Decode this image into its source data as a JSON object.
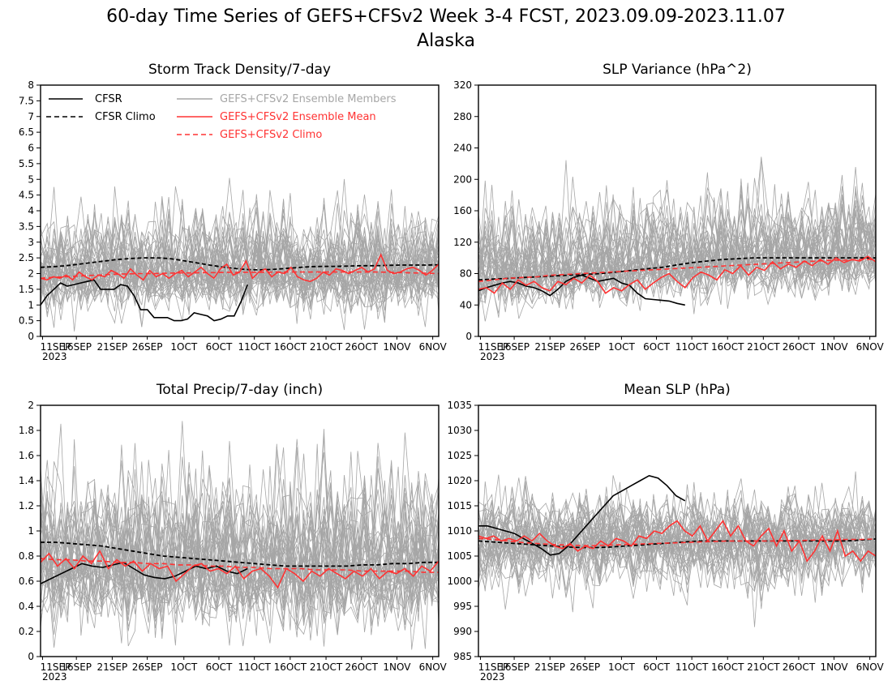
{
  "figure": {
    "title": "60-day Time Series of GEFS+CFSv2 Week 3-4 FCST, 2023.09.09-2023.11.07",
    "subtitle": "Alaska"
  },
  "legend": {
    "cfsr": "CFSR",
    "cfsr_climo": "CFSR Climo",
    "members": "GEFS+CFSv2 Ensemble Members",
    "ens_mean": "GEFS+CFSv2 Ensemble Mean",
    "ens_climo": "GEFS+CFSv2 Climo"
  },
  "colors": {
    "cfsr": "#000000",
    "members": "#a6a6a6",
    "ens_mean": "#ff3333",
    "climo_red": "#ff3333"
  },
  "chart_data": [
    {
      "type": "line",
      "title": "Storm Track Density/7-day",
      "x_ticks": [
        "11SEP",
        "16SEP",
        "21SEP",
        "26SEP",
        "1OCT",
        "6OCT",
        "11OCT",
        "16OCT",
        "21OCT",
        "26OCT",
        "1NOV",
        "6NOV"
      ],
      "x_year_label": "2023",
      "ylim": [
        0,
        8
      ],
      "y_ticks": [
        "0",
        "0.5",
        "1",
        "1.5",
        "2",
        "2.5",
        "3",
        "3.5",
        "4",
        "4.5",
        "5",
        "5.5",
        "6",
        "6.5",
        "7",
        "7.5",
        "8"
      ],
      "has_legend": true,
      "series": [
        {
          "name": "CFSR",
          "style": "black-solid",
          "values": [
            1.0,
            1.3,
            1.5,
            1.7,
            1.6,
            1.65,
            1.7,
            1.75,
            1.8,
            1.5,
            1.5,
            1.5,
            1.65,
            1.6,
            1.3,
            0.85,
            0.85,
            0.6,
            0.6,
            0.6,
            0.5,
            0.5,
            0.55,
            0.75,
            0.7,
            0.65,
            0.5,
            0.55,
            0.65,
            0.65,
            1.1,
            1.65
          ]
        },
        {
          "name": "CFSR Climo",
          "style": "black-dash",
          "values": [
            2.2,
            2.22,
            2.25,
            2.3,
            2.35,
            2.4,
            2.45,
            2.48,
            2.5,
            2.5,
            2.48,
            2.42,
            2.35,
            2.28,
            2.22,
            2.17,
            2.13,
            2.12,
            2.13,
            2.16,
            2.19,
            2.22,
            2.23,
            2.23,
            2.24,
            2.25,
            2.25,
            2.26,
            2.27,
            2.27,
            2.27,
            2.28
          ]
        },
        {
          "name": "GEFS+CFSv2 Ensemble Mean",
          "style": "red-solid",
          "values": [
            1.85,
            1.8,
            1.9,
            1.85,
            1.95,
            1.8,
            2.05,
            1.9,
            1.8,
            1.95,
            1.9,
            2.1,
            2.0,
            1.85,
            2.15,
            1.95,
            1.8,
            2.1,
            1.9,
            2.0,
            1.85,
            2.0,
            2.1,
            1.9,
            2.05,
            2.2,
            2.0,
            1.85,
            2.15,
            2.3,
            1.95,
            2.05,
            2.4,
            1.85,
            2.05,
            2.15,
            1.9,
            2.05,
            2.0,
            2.2,
            1.9,
            1.8,
            1.75,
            1.85,
            2.05,
            1.95,
            2.15,
            2.1,
            2.0,
            2.1,
            2.2,
            2.05,
            2.15,
            2.6,
            2.1,
            2.0,
            2.05,
            2.15,
            2.2,
            2.1,
            1.95,
            2.1,
            2.3
          ]
        },
        {
          "name": "GEFS+CFSv2 Climo",
          "style": "red-dash",
          "values": [
            1.85,
            1.88,
            1.9,
            1.92,
            1.94,
            1.96,
            1.98,
            1.99,
            2.0,
            2.0,
            2.01,
            2.02,
            2.02,
            2.03,
            2.03,
            2.04,
            2.04,
            2.04,
            2.04,
            2.05,
            2.05,
            2.05,
            2.05,
            2.05,
            2.05,
            2.05,
            2.05,
            2.05,
            2.04,
            2.03,
            2.02,
            2.01,
            2.0
          ]
        }
      ]
    },
    {
      "type": "line",
      "title": "SLP Variance (hPa^2)",
      "x_ticks": [
        "11SEP",
        "16SEP",
        "21SEP",
        "26SEP",
        "1OCT",
        "6OCT",
        "11OCT",
        "16OCT",
        "21OCT",
        "26OCT",
        "1NOV",
        "6NOV"
      ],
      "x_year_label": "2023",
      "ylim": [
        0,
        320
      ],
      "y_ticks": [
        "0",
        "40",
        "80",
        "120",
        "160",
        "200",
        "240",
        "280",
        "320"
      ],
      "has_legend": false,
      "series": [
        {
          "name": "CFSR",
          "style": "black-solid",
          "values": [
            58,
            62,
            65,
            68,
            70,
            68,
            64,
            62,
            58,
            52,
            60,
            70,
            75,
            78,
            74,
            70,
            72,
            74,
            68,
            65,
            55,
            48,
            47,
            46,
            45,
            42,
            40
          ]
        },
        {
          "name": "CFSR Climo",
          "style": "black-dash",
          "values": [
            72,
            73,
            74,
            75,
            76,
            77,
            78,
            79,
            80,
            82,
            84,
            86,
            88,
            91,
            94,
            96,
            98,
            99,
            100,
            100,
            100,
            100,
            100,
            100,
            100,
            100,
            100
          ]
        },
        {
          "name": "GEFS+CFSv2 Ensemble Mean",
          "style": "red-solid",
          "values": [
            60,
            62,
            55,
            68,
            60,
            72,
            65,
            70,
            62,
            58,
            70,
            66,
            74,
            68,
            78,
            70,
            55,
            62,
            58,
            66,
            72,
            60,
            68,
            75,
            80,
            70,
            62,
            75,
            82,
            78,
            72,
            85,
            80,
            90,
            78,
            88,
            84,
            95,
            86,
            92,
            88,
            96,
            90,
            98,
            92,
            100,
            94,
            98,
            96,
            102,
            95
          ]
        },
        {
          "name": "GEFS+CFSv2 Climo",
          "style": "red-dash",
          "values": [
            70,
            72,
            74,
            75,
            76,
            78,
            79,
            80,
            81,
            82,
            83,
            84,
            85,
            86,
            87,
            88,
            89,
            90,
            91,
            92,
            93,
            94,
            95,
            96,
            97,
            97,
            98,
            98
          ]
        }
      ]
    },
    {
      "type": "line",
      "title": "Total Precip/7-day (inch)",
      "x_ticks": [
        "11SEP",
        "16SEP",
        "21SEP",
        "26SEP",
        "1OCT",
        "6OCT",
        "11OCT",
        "16OCT",
        "21OCT",
        "26OCT",
        "1NOV",
        "6NOV"
      ],
      "x_year_label": "2023",
      "ylim": [
        0,
        2
      ],
      "y_ticks": [
        "0",
        "0.2",
        "0.4",
        "0.6",
        "0.8",
        "1",
        "1.2",
        "1.4",
        "1.6",
        "1.8",
        "2"
      ],
      "has_legend": false,
      "series": [
        {
          "name": "CFSR",
          "style": "black-solid",
          "values": [
            0.58,
            0.62,
            0.66,
            0.7,
            0.74,
            0.72,
            0.71,
            0.73,
            0.75,
            0.7,
            0.65,
            0.63,
            0.62,
            0.64,
            0.68,
            0.72,
            0.7,
            0.72,
            0.68,
            0.66,
            0.7
          ]
        },
        {
          "name": "CFSR Climo",
          "style": "black-dash",
          "values": [
            0.91,
            0.91,
            0.9,
            0.89,
            0.88,
            0.86,
            0.84,
            0.82,
            0.8,
            0.79,
            0.78,
            0.77,
            0.76,
            0.75,
            0.74,
            0.73,
            0.72,
            0.72,
            0.72,
            0.72,
            0.72,
            0.73,
            0.73,
            0.74,
            0.74,
            0.75,
            0.75
          ]
        },
        {
          "name": "GEFS+CFSv2 Ensemble Mean",
          "style": "red-solid",
          "values": [
            0.75,
            0.82,
            0.72,
            0.78,
            0.7,
            0.8,
            0.74,
            0.84,
            0.7,
            0.77,
            0.72,
            0.76,
            0.68,
            0.74,
            0.7,
            0.72,
            0.6,
            0.66,
            0.72,
            0.74,
            0.68,
            0.7,
            0.66,
            0.72,
            0.62,
            0.68,
            0.7,
            0.64,
            0.55,
            0.7,
            0.66,
            0.6,
            0.68,
            0.64,
            0.7,
            0.66,
            0.62,
            0.68,
            0.64,
            0.7,
            0.62,
            0.68,
            0.66,
            0.7,
            0.64,
            0.72,
            0.68,
            0.76
          ]
        },
        {
          "name": "GEFS+CFSv2 Climo",
          "style": "red-dash",
          "values": [
            0.78,
            0.77,
            0.77,
            0.76,
            0.76,
            0.75,
            0.75,
            0.74,
            0.74,
            0.73,
            0.73,
            0.72,
            0.72,
            0.71,
            0.71,
            0.7,
            0.7,
            0.7,
            0.69,
            0.69,
            0.69,
            0.68,
            0.68,
            0.68,
            0.68,
            0.67,
            0.67
          ]
        }
      ]
    },
    {
      "type": "line",
      "title": "Mean SLP (hPa)",
      "x_ticks": [
        "11SEP",
        "16SEP",
        "21SEP",
        "26SEP",
        "1OCT",
        "6OCT",
        "11OCT",
        "16OCT",
        "21OCT",
        "26OCT",
        "1NOV",
        "6NOV"
      ],
      "x_year_label": "2023",
      "ylim": [
        985,
        1035
      ],
      "y_ticks": [
        "985",
        "990",
        "995",
        "1000",
        "1005",
        "1010",
        "1015",
        "1020",
        "1025",
        "1030",
        "1035"
      ],
      "has_legend": false,
      "series": [
        {
          "name": "CFSR",
          "style": "black-solid",
          "values": [
            1011,
            1011,
            1010.5,
            1010,
            1009.5,
            1008.5,
            1007.5,
            1006.5,
            1005.2,
            1005.5,
            1007,
            1009,
            1011,
            1013,
            1015,
            1017,
            1018,
            1019,
            1020,
            1021,
            1020.5,
            1019,
            1017,
            1016
          ]
        },
        {
          "name": "CFSR Climo",
          "style": "black-dash",
          "values": [
            1008,
            1007.8,
            1007.6,
            1007.4,
            1007.2,
            1007,
            1006.8,
            1006.7,
            1006.7,
            1006.8,
            1007,
            1007.2,
            1007.4,
            1007.6,
            1007.8,
            1008,
            1008,
            1008,
            1008,
            1008,
            1008,
            1008,
            1008,
            1008,
            1008,
            1008,
            1008.2,
            1008.4
          ]
        },
        {
          "name": "GEFS+CFSv2 Ensemble Mean",
          "style": "red-solid",
          "values": [
            1009,
            1008.5,
            1009,
            1008,
            1008.5,
            1008,
            1009,
            1008,
            1009.5,
            1008,
            1007,
            1006.5,
            1007.5,
            1006,
            1007,
            1006.5,
            1008,
            1007,
            1008.5,
            1008,
            1007,
            1009,
            1008.5,
            1010,
            1009.5,
            1011,
            1012,
            1010,
            1009,
            1011,
            1008,
            1010,
            1012,
            1009,
            1011,
            1008,
            1007,
            1009,
            1010.5,
            1007,
            1010,
            1006,
            1008,
            1004,
            1006,
            1009,
            1006,
            1010,
            1005,
            1006,
            1004,
            1006,
            1005
          ]
        },
        {
          "name": "GEFS+CFSv2 Climo",
          "style": "red-dash",
          "values": [
            1008.5,
            1008.3,
            1008,
            1007.7,
            1007.5,
            1007.3,
            1007.2,
            1007.1,
            1007.1,
            1007.2,
            1007.3,
            1007.4,
            1007.5,
            1007.6,
            1007.7,
            1007.8,
            1007.9,
            1008,
            1008,
            1008,
            1008,
            1008.1,
            1008.1,
            1008.2,
            1008.2,
            1008.3,
            1008.3,
            1008.4
          ]
        }
      ]
    }
  ]
}
